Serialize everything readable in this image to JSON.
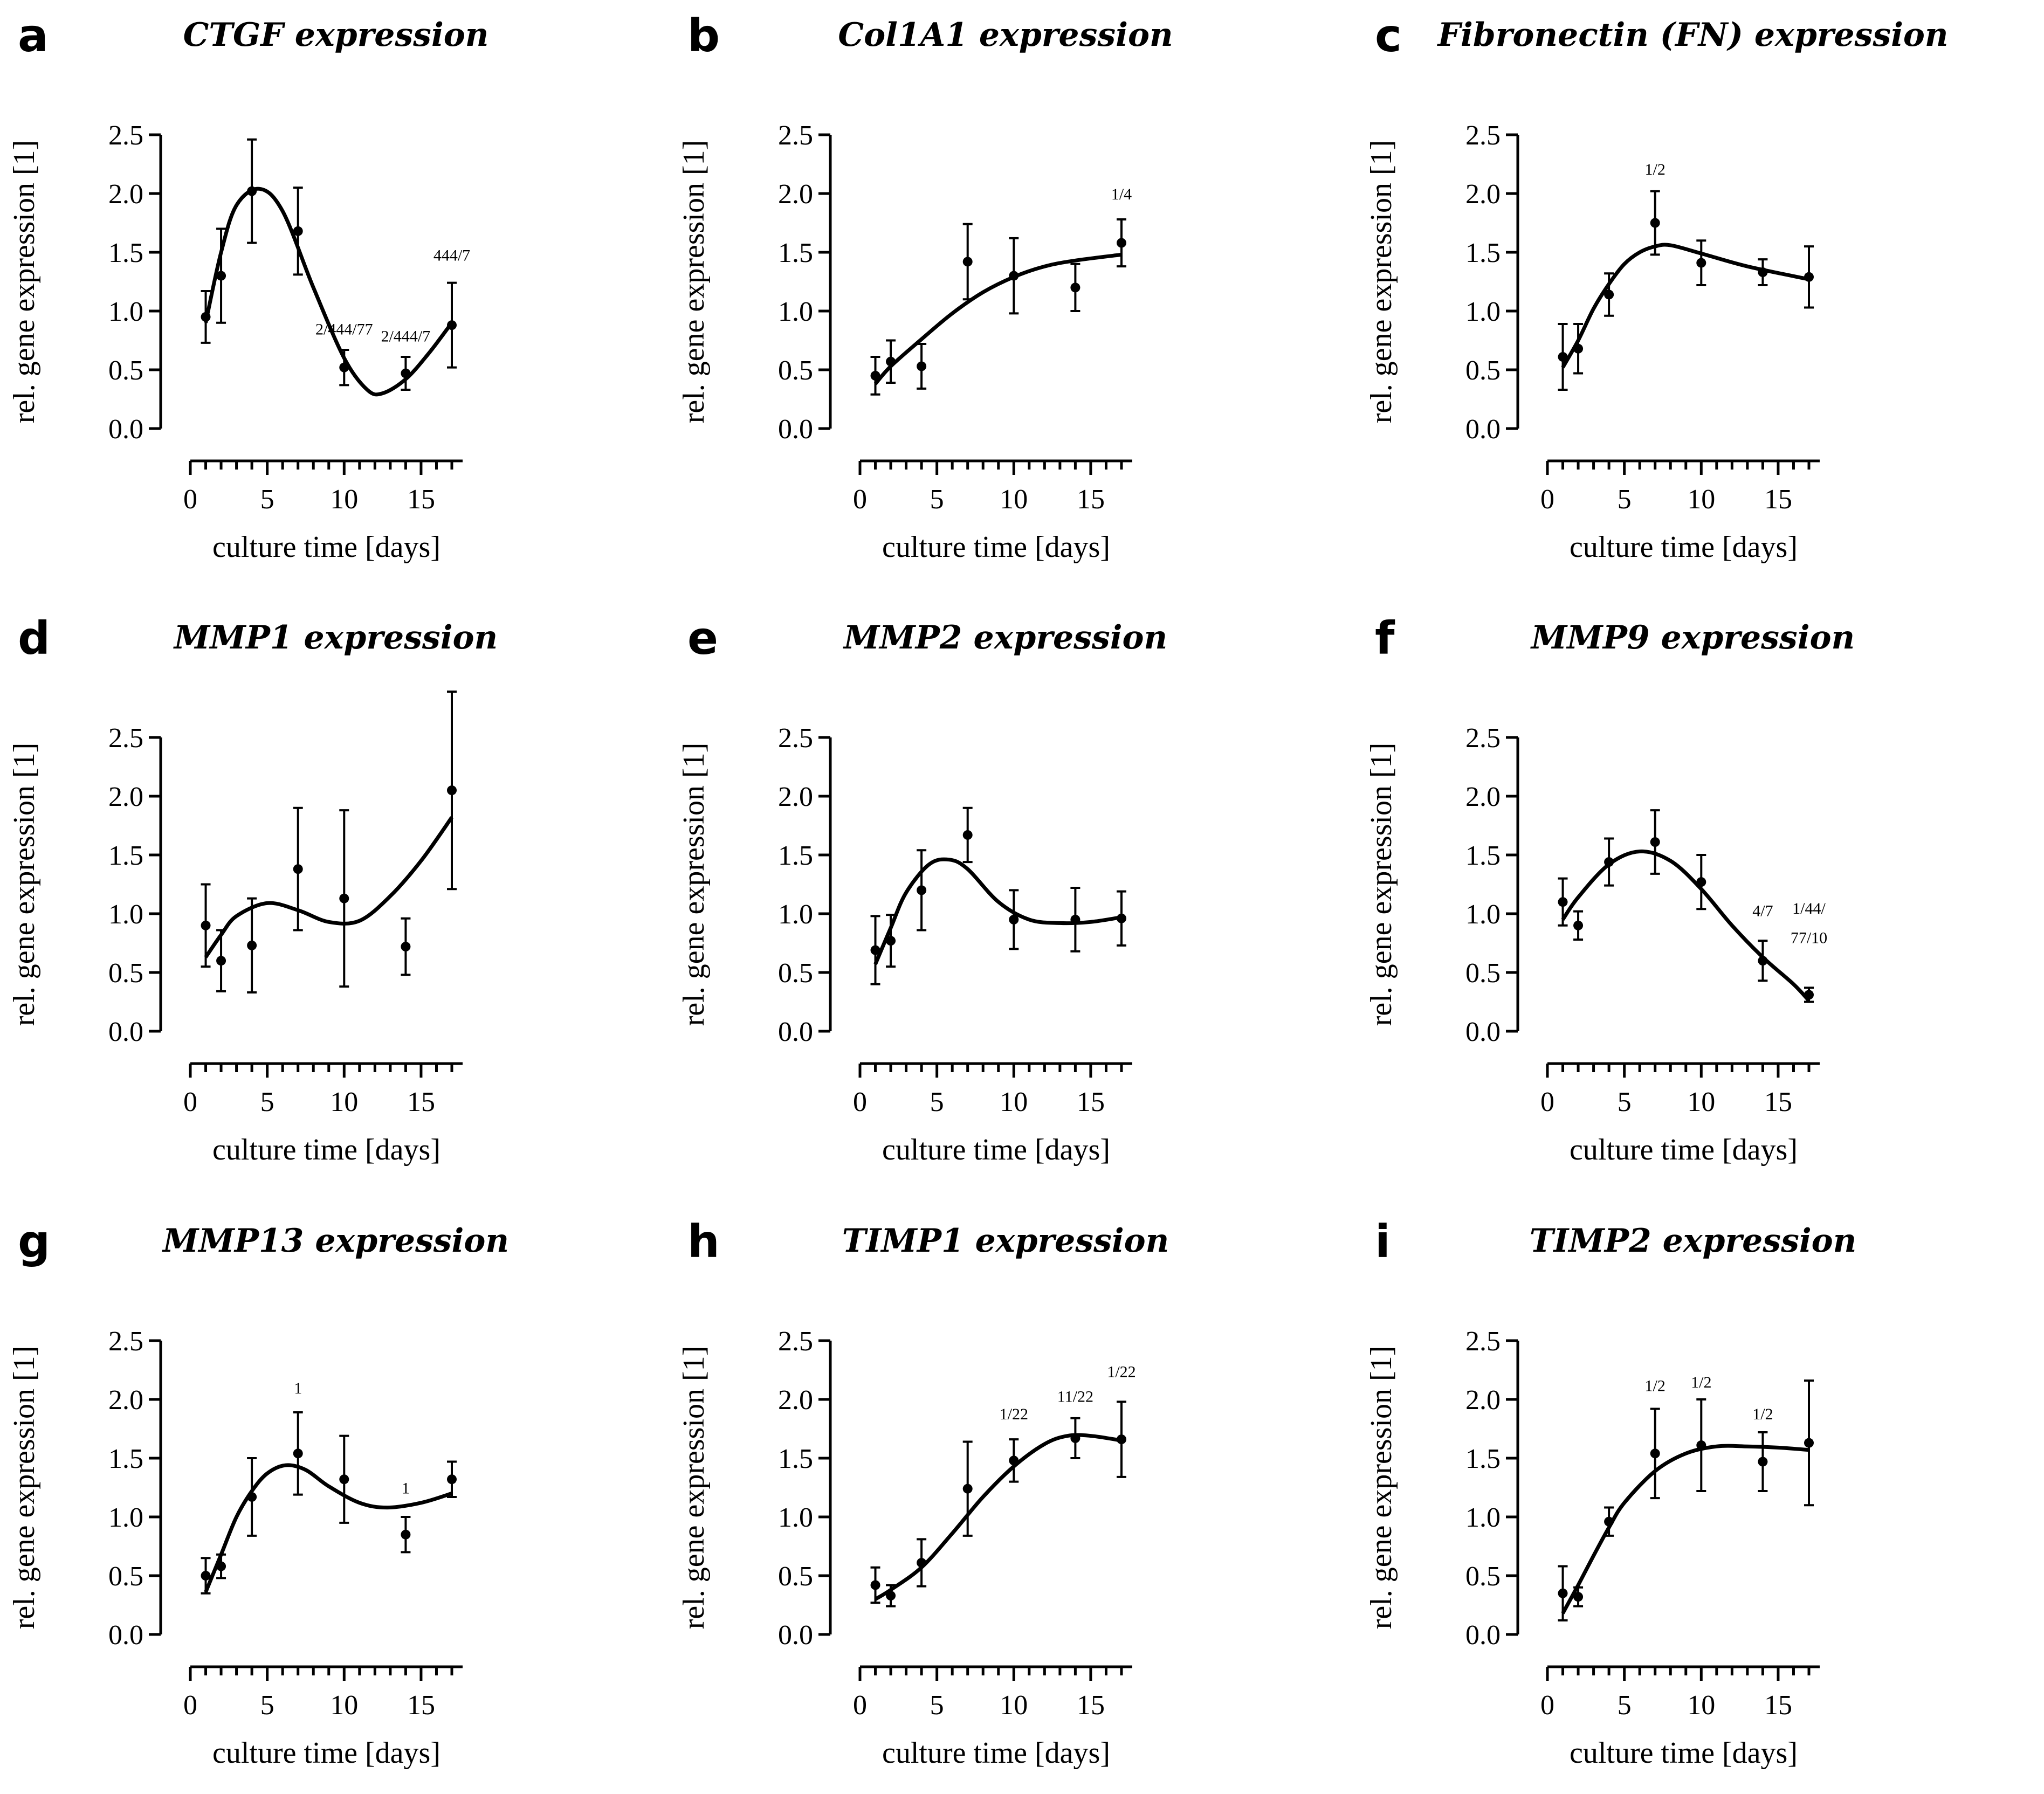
{
  "figure": {
    "common": {
      "xlabel": "culture time [days]",
      "ylabel": "rel. gene expression [1]",
      "xlim": [
        0,
        17
      ],
      "ylim": [
        0,
        2.5
      ],
      "xticks": [
        "0",
        "5",
        "10",
        "15"
      ],
      "yticks": [
        "0.0",
        "0.5",
        "1.0",
        "1.5",
        "2.0",
        "2.5"
      ]
    }
  },
  "chart_data": [
    {
      "type": "scatter",
      "letter": "a",
      "title": "CTGF expression",
      "xlabel": "culture time [days]",
      "ylabel": "rel. gene expression [1]",
      "x": [
        1,
        2,
        4,
        7,
        10,
        14,
        17
      ],
      "y": [
        0.95,
        1.3,
        2.02,
        1.68,
        0.52,
        0.47,
        0.88
      ],
      "err": [
        0.22,
        0.4,
        0.44,
        0.37,
        0.15,
        0.14,
        0.36
      ],
      "fit": [
        [
          1,
          0.9
        ],
        [
          2,
          1.5
        ],
        [
          3,
          1.9
        ],
        [
          4.5,
          2.04
        ],
        [
          6,
          1.85
        ],
        [
          8,
          1.2
        ],
        [
          10,
          0.6
        ],
        [
          11.5,
          0.33
        ],
        [
          12.5,
          0.3
        ],
        [
          14,
          0.42
        ],
        [
          15.5,
          0.64
        ],
        [
          17,
          0.9
        ]
      ],
      "annotations": [
        {
          "x": 10,
          "y": 0.8,
          "text": "2/444/77"
        },
        {
          "x": 14,
          "y": 0.74,
          "text": "2/444/7"
        },
        {
          "x": 17,
          "y": 1.43,
          "text": "444/7"
        }
      ],
      "xlim": [
        0,
        17
      ],
      "ylim": [
        0,
        2.5
      ]
    },
    {
      "type": "scatter",
      "letter": "b",
      "title": "Col1A1 expression",
      "xlabel": "culture time [days]",
      "ylabel": "rel. gene expression [1]",
      "x": [
        1,
        2,
        4,
        7,
        10,
        14,
        17
      ],
      "y": [
        0.45,
        0.57,
        0.53,
        1.42,
        1.3,
        1.2,
        1.58
      ],
      "err": [
        0.16,
        0.18,
        0.19,
        0.32,
        0.32,
        0.2,
        0.2
      ],
      "fit": [
        [
          1,
          0.38
        ],
        [
          2,
          0.53
        ],
        [
          4,
          0.76
        ],
        [
          6,
          0.98
        ],
        [
          8,
          1.16
        ],
        [
          10,
          1.29
        ],
        [
          12,
          1.38
        ],
        [
          14,
          1.43
        ],
        [
          17,
          1.48
        ]
      ],
      "annotations": [
        {
          "x": 17,
          "y": 1.95,
          "text": "1/4"
        }
      ],
      "xlim": [
        0,
        17
      ],
      "ylim": [
        0,
        2.5
      ]
    },
    {
      "type": "scatter",
      "letter": "c",
      "title": "Fibronectin (FN) expression",
      "xlabel": "culture time [days]",
      "ylabel": "rel. gene expression [1]",
      "x": [
        1,
        2,
        4,
        7,
        10,
        14,
        17
      ],
      "y": [
        0.61,
        0.68,
        1.14,
        1.75,
        1.41,
        1.33,
        1.29
      ],
      "err": [
        0.28,
        0.21,
        0.18,
        0.27,
        0.19,
        0.11,
        0.26
      ],
      "fit": [
        [
          1,
          0.52
        ],
        [
          2,
          0.75
        ],
        [
          3,
          1.02
        ],
        [
          4,
          1.23
        ],
        [
          5,
          1.4
        ],
        [
          6,
          1.5
        ],
        [
          7,
          1.55
        ],
        [
          8,
          1.56
        ],
        [
          10,
          1.49
        ],
        [
          13,
          1.38
        ],
        [
          17,
          1.27
        ]
      ],
      "annotations": [
        {
          "x": 7,
          "y": 2.16,
          "text": "1/2"
        }
      ],
      "xlim": [
        0,
        17
      ],
      "ylim": [
        0,
        2.5
      ]
    },
    {
      "type": "scatter",
      "letter": "d",
      "title": "MMP1 expression",
      "xlabel": "culture time [days]",
      "ylabel": "rel. gene expression [1]",
      "x": [
        1,
        2,
        4,
        7,
        10,
        14,
        17
      ],
      "y": [
        0.9,
        0.6,
        0.73,
        1.38,
        1.13,
        0.72,
        2.05
      ],
      "err": [
        0.35,
        0.26,
        0.4,
        0.52,
        0.75,
        0.24,
        0.84
      ],
      "fit": [
        [
          1,
          0.63
        ],
        [
          2,
          0.82
        ],
        [
          3,
          0.98
        ],
        [
          5,
          1.09
        ],
        [
          7,
          1.03
        ],
        [
          9,
          0.93
        ],
        [
          11,
          0.94
        ],
        [
          13,
          1.15
        ],
        [
          15,
          1.45
        ],
        [
          17,
          1.82
        ]
      ],
      "annotations": [],
      "xlim": [
        0,
        17
      ],
      "ylim": [
        0,
        2.5
      ]
    },
    {
      "type": "scatter",
      "letter": "e",
      "title": "MMP2 expression",
      "xlabel": "culture time [days]",
      "ylabel": "rel. gene expression [1]",
      "x": [
        1,
        2,
        4,
        7,
        10,
        14,
        17
      ],
      "y": [
        0.69,
        0.77,
        1.2,
        1.67,
        0.95,
        0.95,
        0.96
      ],
      "err": [
        0.29,
        0.22,
        0.34,
        0.23,
        0.25,
        0.27,
        0.23
      ],
      "fit": [
        [
          1,
          0.57
        ],
        [
          2,
          0.88
        ],
        [
          3,
          1.18
        ],
        [
          4.5,
          1.42
        ],
        [
          5.8,
          1.46
        ],
        [
          7,
          1.38
        ],
        [
          9,
          1.1
        ],
        [
          11,
          0.95
        ],
        [
          13,
          0.92
        ],
        [
          15,
          0.93
        ],
        [
          17,
          0.97
        ]
      ],
      "annotations": [],
      "xlim": [
        0,
        17
      ],
      "ylim": [
        0,
        2.5
      ]
    },
    {
      "type": "scatter",
      "letter": "f",
      "title": "MMP9 expression",
      "xlabel": "culture time [days]",
      "ylabel": "rel. gene expression [1]",
      "x": [
        1,
        2,
        4,
        7,
        10,
        14,
        17
      ],
      "y": [
        1.1,
        0.9,
        1.44,
        1.61,
        1.27,
        0.6,
        0.31
      ],
      "err": [
        0.2,
        0.12,
        0.2,
        0.27,
        0.23,
        0.17,
        0.06
      ],
      "fit": [
        [
          1,
          0.95
        ],
        [
          2,
          1.14
        ],
        [
          4,
          1.42
        ],
        [
          6,
          1.53
        ],
        [
          8,
          1.45
        ],
        [
          10,
          1.21
        ],
        [
          12,
          0.9
        ],
        [
          14,
          0.63
        ],
        [
          16,
          0.4
        ],
        [
          17,
          0.26
        ]
      ],
      "annotations": [
        {
          "x": 14,
          "y": 0.98,
          "text": "4/7"
        },
        {
          "x": 17,
          "y": 0.75,
          "text": "77/10"
        },
        {
          "x": 17,
          "y": 1.0,
          "text": "1/44/"
        }
      ],
      "xlim": [
        0,
        17
      ],
      "ylim": [
        0,
        2.5
      ]
    },
    {
      "type": "scatter",
      "letter": "g",
      "title": "MMP13 expression",
      "xlabel": "culture time [days]",
      "ylabel": "rel. gene expression [1]",
      "x": [
        1,
        2,
        4,
        7,
        10,
        14,
        17
      ],
      "y": [
        0.5,
        0.58,
        1.17,
        1.54,
        1.32,
        0.85,
        1.32
      ],
      "err": [
        0.15,
        0.1,
        0.33,
        0.35,
        0.37,
        0.15,
        0.15
      ],
      "fit": [
        [
          1,
          0.36
        ],
        [
          2,
          0.68
        ],
        [
          3,
          1.0
        ],
        [
          4,
          1.22
        ],
        [
          5,
          1.37
        ],
        [
          6.2,
          1.44
        ],
        [
          7.5,
          1.4
        ],
        [
          9,
          1.26
        ],
        [
          11,
          1.12
        ],
        [
          12.8,
          1.08
        ],
        [
          15,
          1.12
        ],
        [
          17,
          1.2
        ]
      ],
      "annotations": [
        {
          "x": 7,
          "y": 2.05,
          "text": "1"
        },
        {
          "x": 14,
          "y": 1.2,
          "text": "1"
        }
      ],
      "xlim": [
        0,
        17
      ],
      "ylim": [
        0,
        2.5
      ]
    },
    {
      "type": "scatter",
      "letter": "h",
      "title": "TIMP1 expression",
      "xlabel": "culture time [days]",
      "ylabel": "rel. gene expression [1]",
      "x": [
        1,
        2,
        4,
        7,
        10,
        14,
        17
      ],
      "y": [
        0.42,
        0.33,
        0.61,
        1.24,
        1.48,
        1.67,
        1.66
      ],
      "err": [
        0.15,
        0.09,
        0.2,
        0.4,
        0.18,
        0.17,
        0.32
      ],
      "fit": [
        [
          1,
          0.3
        ],
        [
          2,
          0.38
        ],
        [
          4,
          0.57
        ],
        [
          6,
          0.86
        ],
        [
          8,
          1.17
        ],
        [
          10,
          1.43
        ],
        [
          12,
          1.62
        ],
        [
          13.5,
          1.69
        ],
        [
          15,
          1.69
        ],
        [
          17,
          1.65
        ]
      ],
      "annotations": [
        {
          "x": 10,
          "y": 1.83,
          "text": "1/22"
        },
        {
          "x": 14,
          "y": 1.98,
          "text": "11/22"
        },
        {
          "x": 17,
          "y": 2.19,
          "text": "1/22"
        }
      ],
      "xlim": [
        0,
        17
      ],
      "ylim": [
        0,
        2.5
      ]
    },
    {
      "type": "scatter",
      "letter": "i",
      "title": "TIMP2 expression",
      "xlabel": "culture time [days]",
      "ylabel": "rel. gene expression [1]",
      "x": [
        1,
        2,
        4,
        7,
        10,
        14,
        17
      ],
      "y": [
        0.35,
        0.32,
        0.96,
        1.54,
        1.61,
        1.47,
        1.63
      ],
      "err": [
        0.23,
        0.08,
        0.12,
        0.38,
        0.39,
        0.25,
        0.53
      ],
      "fit": [
        [
          1,
          0.18
        ],
        [
          2,
          0.42
        ],
        [
          3,
          0.67
        ],
        [
          4,
          0.91
        ],
        [
          5,
          1.12
        ],
        [
          7,
          1.39
        ],
        [
          9,
          1.54
        ],
        [
          11,
          1.6
        ],
        [
          13,
          1.6
        ],
        [
          15,
          1.59
        ],
        [
          17,
          1.57
        ]
      ],
      "annotations": [
        {
          "x": 7,
          "y": 2.07,
          "text": "1/2"
        },
        {
          "x": 10,
          "y": 2.1,
          "text": "1/2"
        },
        {
          "x": 14,
          "y": 1.83,
          "text": "1/2"
        }
      ],
      "xlim": [
        0,
        17
      ],
      "ylim": [
        0,
        2.5
      ]
    }
  ]
}
